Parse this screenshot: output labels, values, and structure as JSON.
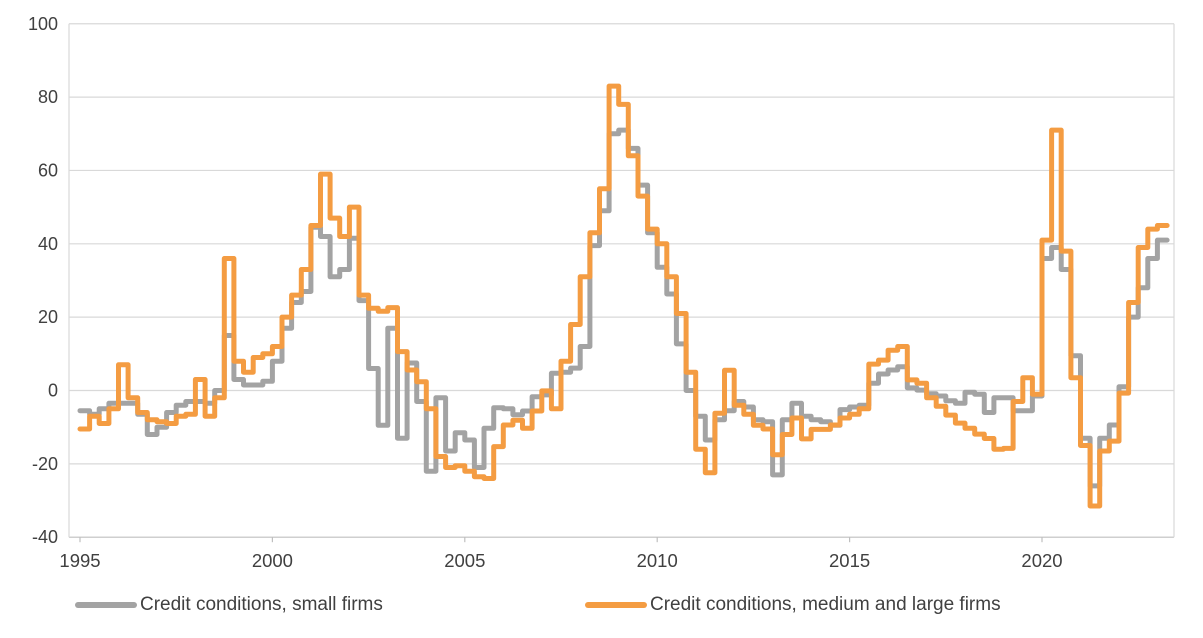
{
  "chart_data": {
    "type": "line",
    "title": "",
    "xlabel": "",
    "ylabel": "",
    "x_start": "1995Q1",
    "x_end": "2023Q1",
    "frequency": "quarterly",
    "ylim": [
      -40,
      100
    ],
    "yticks": [
      100,
      80,
      60,
      40,
      20,
      0,
      -20,
      -40
    ],
    "xticks": [
      1995,
      2000,
      2005,
      2010,
      2015,
      2020
    ],
    "grid": true,
    "legend_position": "bottom",
    "colors": {
      "gridline": "#D9D9D9",
      "axis_line": "#BFBFBF",
      "tick_label": "#404040",
      "small_firms": "#A3A3A3",
      "medium_large_firms": "#F49C42"
    },
    "series": [
      {
        "name": "Credit conditions, small firms",
        "color": "#A3A3A3",
        "values": [
          -5.5,
          -6.5,
          -5,
          -3.5,
          -3.5,
          -3.5,
          -6.5,
          -12,
          -10,
          -6,
          -4,
          -3,
          -3,
          -3.5,
          0,
          15,
          3,
          1.5,
          1.5,
          2.5,
          8,
          17,
          24,
          27,
          44.5,
          42,
          31,
          33,
          41.5,
          24.5,
          6,
          -9.5,
          17,
          -13,
          7.5,
          -3,
          -22,
          -2,
          -16.5,
          -11.5,
          -13.5,
          -21,
          -10.3,
          -4.7,
          -5,
          -6.6,
          -5.6,
          -1.7,
          -1.2,
          4.7,
          5,
          6.1,
          12,
          39.5,
          49,
          70,
          71,
          66,
          56,
          43,
          33.6,
          26.3,
          12.7,
          0,
          -7,
          -13.5,
          -8,
          -5.5,
          -3,
          -4.5,
          -8,
          -8.5,
          -23,
          -8,
          -3.5,
          -7,
          -8,
          -8.5,
          -9.5,
          -5.2,
          -4.5,
          -4,
          2,
          4.5,
          5.6,
          6.5,
          0.7,
          0.1,
          -0.9,
          -1.5,
          -2.8,
          -3.5,
          -0.5,
          -1,
          -6,
          -2,
          -2,
          -5.5,
          -5.5,
          -1.5,
          36,
          39,
          33,
          9.5,
          -13,
          -26,
          -13,
          -9.4,
          1,
          20,
          28,
          36,
          41
        ]
      },
      {
        "name": "Credit conditions, medium and large firms",
        "color": "#F49C42",
        "values": [
          -10.5,
          -7,
          -9,
          -5,
          7,
          -2,
          -6,
          -8,
          -8.5,
          -9,
          -7,
          -6.5,
          3,
          -7,
          -2,
          36,
          8,
          5,
          9,
          10,
          12,
          20,
          26,
          33,
          45,
          59,
          47,
          42,
          50,
          26,
          22.4,
          21.6,
          22.6,
          10.6,
          5.6,
          2.4,
          -5,
          -18,
          -21,
          -20.5,
          -22,
          -23.5,
          -24,
          -15.3,
          -9.4,
          -8.1,
          -10.3,
          -5.6,
          -0.1,
          -5,
          8,
          18,
          31,
          43,
          55,
          83,
          78,
          64,
          53,
          44,
          40,
          31,
          21,
          5,
          -16,
          -22.4,
          -6.2,
          5.5,
          -4,
          -6.5,
          -9.5,
          -10.5,
          -17.5,
          -12,
          -7.5,
          -13.2,
          -10.6,
          -10.6,
          -9.4,
          -7.5,
          -6.5,
          -5,
          7.2,
          8.3,
          11,
          12,
          2.9,
          2,
          -2,
          -4.3,
          -6.7,
          -8.9,
          -10.3,
          -11.9,
          -13.1,
          -16,
          -15.8,
          -3,
          3.5,
          -1,
          41,
          71,
          38,
          3.5,
          -15,
          -31.5,
          -16.5,
          -13.8,
          -0.7,
          24,
          39,
          44,
          45
        ]
      }
    ]
  },
  "legend": {
    "items": [
      {
        "label": "Credit conditions, small firms",
        "color": "#A3A3A3"
      },
      {
        "label": "Credit conditions, medium and large firms",
        "color": "#F49C42"
      }
    ]
  }
}
